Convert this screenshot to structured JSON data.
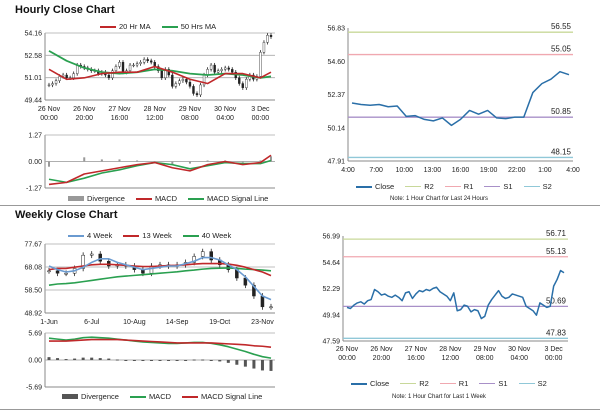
{
  "titles": {
    "hourly": "Hourly Close Chart",
    "weekly": "Weekly Close Chart"
  },
  "colors": {
    "red": "#c0282a",
    "green": "#2aa050",
    "blue4": "#6a9ad0",
    "close": "#2a6fa8",
    "R2": "#c8d89a",
    "R1": "#f0a8b0",
    "S1": "#a890c8",
    "S2": "#90c8d8",
    "bar": "#999999",
    "barDark": "#555555"
  },
  "chart_data": [
    {
      "id": "hourly_price",
      "type": "candlestick-line",
      "ylim": [
        49.44,
        54.16
      ],
      "yticks": [
        "54.16",
        "52.58",
        "51.01",
        "49.44"
      ],
      "grid": true,
      "xlabels": [
        [
          "26 Nov",
          "00:00"
        ],
        [
          "26 Nov",
          "20:00"
        ],
        [
          "27 Nov",
          "16:00"
        ],
        [
          "28 Nov",
          "12:00"
        ],
        [
          "29 Nov",
          "08:00"
        ],
        [
          "30 Nov",
          "04:00"
        ],
        [
          "3 Dec",
          "00:00"
        ]
      ],
      "xlabel_index": [
        0,
        10,
        20,
        30,
        40,
        50,
        60
      ],
      "legend": [
        "20 Hr MA",
        "50 Hrs MA"
      ],
      "close": [
        50.5,
        50.6,
        50.8,
        51.1,
        51.2,
        51.0,
        51.0,
        51.3,
        51.9,
        51.8,
        51.7,
        51.6,
        51.5,
        51.5,
        51.3,
        51.4,
        51.2,
        51.0,
        51.5,
        51.8,
        52.1,
        51.4,
        51.5,
        51.9,
        51.9,
        52.0,
        52.1,
        52.3,
        52.2,
        52.1,
        51.8,
        51.5,
        51.0,
        51.6,
        51.2,
        50.4,
        50.6,
        50.8,
        50.9,
        50.7,
        50.4,
        49.9,
        49.8,
        50.5,
        51.2,
        51.6,
        51.9,
        51.4,
        51.5,
        51.6,
        51.7,
        51.6,
        51.4,
        51.0,
        50.6,
        50.3,
        50.9,
        51.2,
        50.9,
        51.1,
        52.8,
        53.5,
        54.0,
        53.9
      ],
      "ma_x": [
        0,
        5,
        10,
        15,
        20,
        25,
        30,
        35,
        40,
        45,
        50,
        55,
        60,
        63
      ],
      "ma20": [
        51.6,
        50.9,
        51.0,
        51.3,
        51.4,
        51.4,
        51.8,
        51.4,
        50.9,
        50.6,
        51.3,
        51.3,
        51.0,
        51.4
      ],
      "ma50": [
        52.9,
        52.2,
        51.7,
        51.4,
        51.3,
        51.4,
        51.6,
        51.5,
        51.3,
        51.2,
        51.3,
        51.2,
        51.0,
        51.1
      ]
    },
    {
      "id": "hourly_macd",
      "type": "macd",
      "ylim": [
        -1.27,
        1.27
      ],
      "yticks": [
        "1.27",
        "0.00",
        "-1.27"
      ],
      "legend": [
        "Divergence",
        "MACD",
        "MACD Signal Line"
      ],
      "x": [
        0,
        5,
        10,
        15,
        20,
        25,
        30,
        35,
        40,
        45,
        50,
        55,
        60,
        63
      ],
      "macd": [
        -1.1,
        -1.0,
        -0.6,
        -0.45,
        -0.3,
        -0.15,
        -0.05,
        -0.3,
        -0.45,
        -0.15,
        0.0,
        -0.15,
        -0.05,
        0.3
      ],
      "signal": [
        -0.85,
        -1.0,
        -0.8,
        -0.55,
        -0.4,
        -0.2,
        -0.05,
        -0.15,
        -0.35,
        -0.2,
        -0.05,
        -0.1,
        -0.1,
        0.05
      ]
    },
    {
      "id": "day_levels",
      "type": "line",
      "ylim": [
        47.91,
        56.83
      ],
      "yticks": [
        "56.83",
        "54.60",
        "52.37",
        "50.14",
        "47.91"
      ],
      "xlabels": [
        "4:00",
        "7:00",
        "10:00",
        "13:00",
        "16:00",
        "19:00",
        "22:00",
        "1:00",
        "4:00"
      ],
      "close": [
        51.8,
        51.7,
        51.65,
        51.7,
        51.55,
        51.6,
        50.9,
        50.95,
        50.7,
        50.6,
        50.8,
        50.3,
        50.7,
        51.3,
        51.05,
        51.3,
        50.8,
        50.75,
        50.85,
        50.85,
        52.5,
        53.1,
        53.4,
        53.9,
        53.7
      ],
      "levels": {
        "R2": 56.55,
        "R1": 55.05,
        "S1": 50.85,
        "S2": 48.15
      },
      "level_labels": {
        "R2": "56.55",
        "R1": "55.05",
        "S1": "50.85",
        "S2": "48.15"
      },
      "legend": [
        "Close",
        "R2",
        "R1",
        "S1",
        "S2"
      ],
      "note": "Note: 1 Hour Chart for Last 24 Hours"
    },
    {
      "id": "weekly_price",
      "type": "candlestick-line",
      "ylim": [
        48.92,
        77.67
      ],
      "yticks": [
        "77.67",
        "68.08",
        "58.50",
        "48.92"
      ],
      "grid": true,
      "xlabels": [
        "1-Jun",
        "6-Jul",
        "10-Aug",
        "14-Sep",
        "19-Oct",
        "23-Nov"
      ],
      "xlabel_index": [
        0,
        5,
        10,
        15,
        20,
        25
      ],
      "legend": [
        "4 Week",
        "13 Week",
        "40 Week"
      ],
      "close": [
        66.5,
        65.5,
        65.5,
        67.5,
        73,
        73.5,
        70.5,
        68.5,
        69,
        68.5,
        67,
        65.5,
        68.5,
        69,
        68.5,
        69,
        70,
        72.5,
        74.5,
        71,
        69,
        67,
        63.5,
        60.5,
        56,
        51.5,
        51.5
      ],
      "ma4": [
        68.5,
        67,
        66,
        66.5,
        68,
        70,
        71.5,
        71.5,
        70,
        69,
        68,
        67,
        67.5,
        68,
        68.5,
        68.5,
        69.5,
        70.5,
        72,
        72,
        71,
        69,
        67,
        64,
        60,
        56,
        54.5
      ],
      "ma13": [
        67,
        67.5,
        67.5,
        68,
        68.5,
        69,
        69.2,
        69.2,
        69,
        68.8,
        68.5,
        68.3,
        68.3,
        68.5,
        68.7,
        68.8,
        69,
        69.3,
        69.5,
        69.5,
        69.5,
        69.3,
        68.8,
        68,
        67,
        66,
        64.5
      ],
      "ma40": [
        60.5,
        61,
        61.2,
        61.5,
        62,
        62.5,
        63,
        63.5,
        64,
        64.3,
        64.6,
        64.9,
        65.2,
        65.5,
        65.8,
        66.1,
        66.5,
        66.8,
        67.2,
        67.5,
        67.6,
        67.7,
        67.5,
        67.2,
        67,
        66.8,
        66.5
      ]
    },
    {
      "id": "weekly_macd",
      "type": "macd",
      "ylim": [
        -5.69,
        5.69
      ],
      "yticks": [
        "5.69",
        "0.00",
        "-5.69"
      ],
      "legend": [
        "Divergence",
        "MACD",
        "MACD Signal Line"
      ],
      "macd": [
        4.6,
        4.4,
        4.2,
        4.4,
        4.7,
        4.8,
        4.7,
        4.6,
        4.4,
        4.2,
        4.0,
        3.8,
        3.7,
        3.6,
        3.5,
        3.5,
        3.6,
        3.7,
        3.7,
        3.5,
        3.2,
        2.8,
        2.3,
        1.8,
        1.2,
        0.7,
        0.4
      ],
      "signal": [
        4.0,
        4.0,
        4.0,
        4.1,
        4.2,
        4.3,
        4.3,
        4.3,
        4.3,
        4.2,
        4.1,
        4.0,
        3.9,
        3.8,
        3.7,
        3.6,
        3.6,
        3.6,
        3.6,
        3.6,
        3.5,
        3.4,
        3.3,
        3.2,
        3.0,
        2.9,
        2.7
      ]
    },
    {
      "id": "week_levels",
      "type": "line",
      "ylim": [
        47.59,
        56.99
      ],
      "yticks": [
        "56.99",
        "54.64",
        "52.29",
        "49.94",
        "47.59"
      ],
      "xlabels": [
        [
          "26 Nov",
          "00:00"
        ],
        [
          "26 Nov",
          "20:00"
        ],
        [
          "27 Nov",
          "16:00"
        ],
        [
          "28 Nov",
          "12:00"
        ],
        [
          "29 Nov",
          "08:00"
        ],
        [
          "30 Nov",
          "04:00"
        ],
        [
          "3 Dec",
          "00:00"
        ]
      ],
      "xlabel_index": [
        0,
        10,
        20,
        30,
        40,
        50,
        60
      ],
      "close": [
        50.6,
        50.5,
        50.8,
        51.0,
        51.1,
        50.9,
        51.2,
        51.3,
        52.2,
        52.0,
        51.7,
        51.8,
        51.6,
        51.5,
        51.7,
        51.5,
        51.2,
        51.9,
        52.0,
        51.4,
        51.8,
        52.1,
        52.0,
        52.2,
        52.1,
        52.3,
        52.4,
        52.0,
        51.8,
        51.6,
        51.2,
        51.9,
        50.3,
        50.4,
        50.8,
        50.7,
        50.2,
        50.4,
        50.3,
        49.6,
        49.8,
        50.8,
        51.3,
        51.7,
        52.1,
        51.6,
        51.4,
        51.5,
        51.8,
        51.7,
        51.6,
        51.5,
        50.7,
        50.5,
        50.3,
        49.9,
        51.0,
        50.8,
        50.6,
        50.7,
        52.5,
        53.1,
        53.9,
        53.7
      ],
      "levels": {
        "R2": 56.71,
        "R1": 55.13,
        "S1": 50.69,
        "S2": 47.83
      },
      "level_labels": {
        "R2": "56.71",
        "R1": "55.13",
        "S1": "50.69",
        "S2": "47.83"
      },
      "legend": [
        "Close",
        "R2",
        "R1",
        "S1",
        "S2"
      ],
      "note": "Note: 1 Hour Chart for Last 1 Week"
    }
  ]
}
